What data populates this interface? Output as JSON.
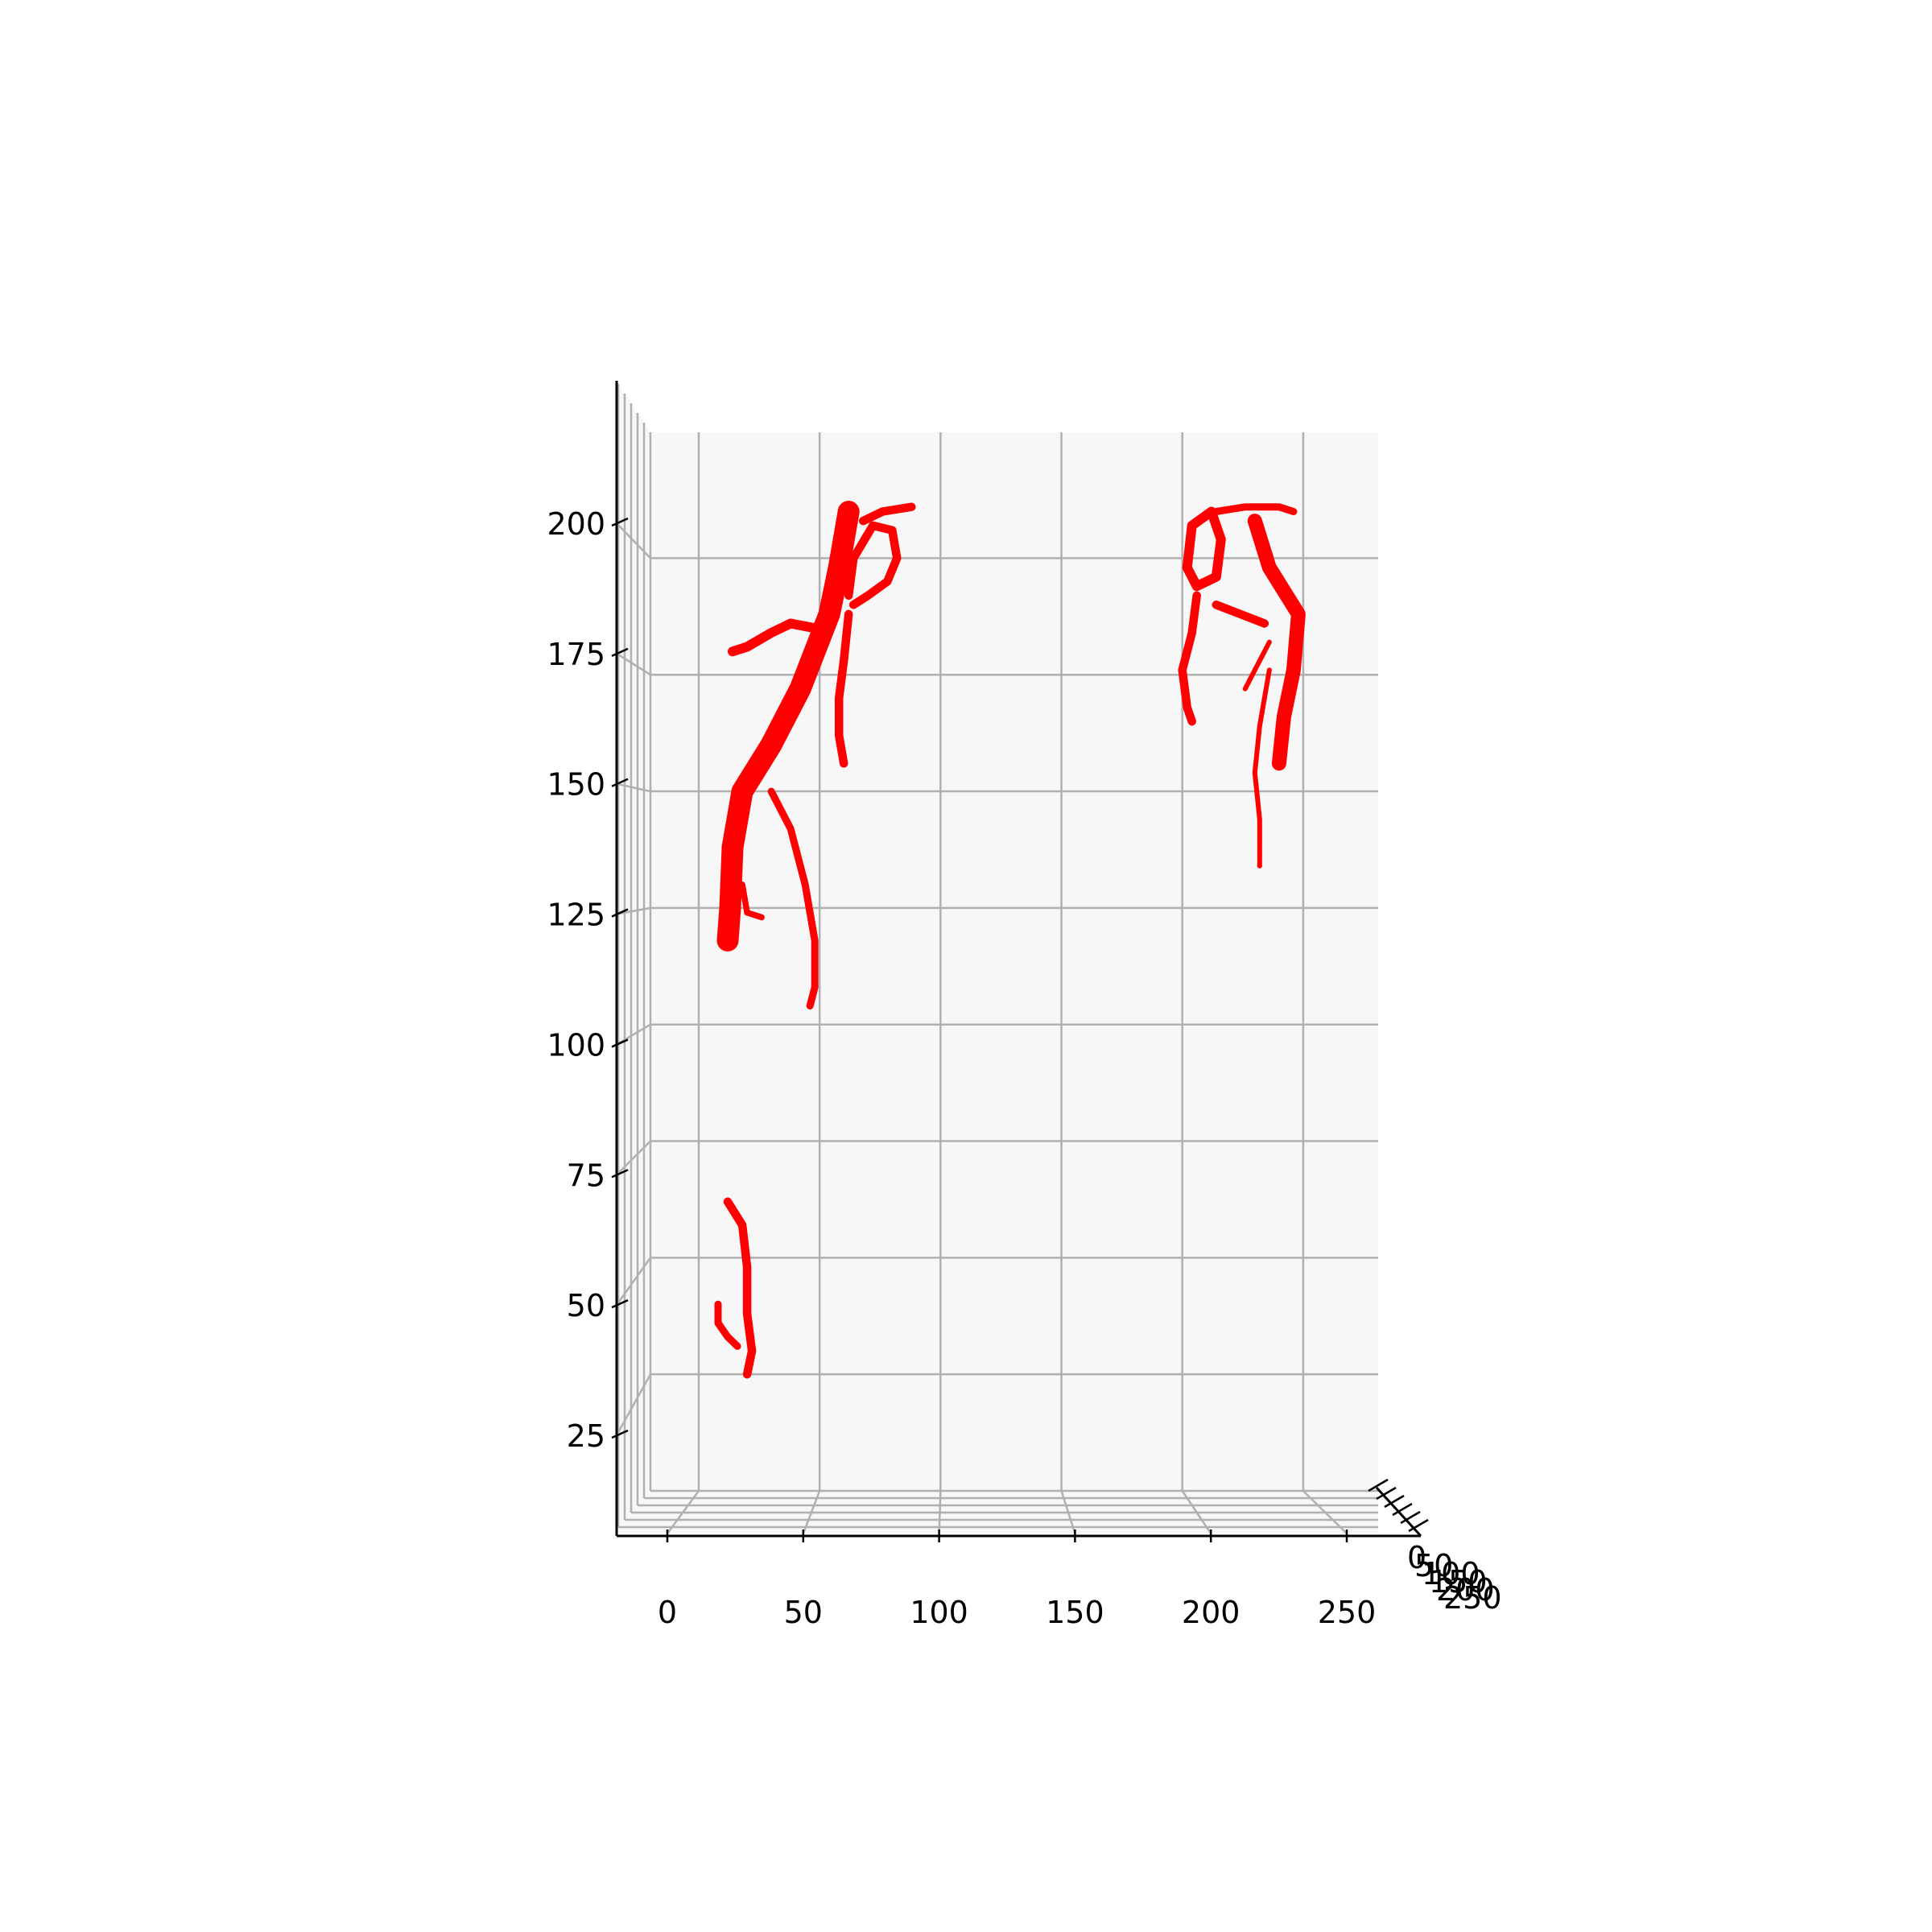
{
  "chart_data": {
    "type": "scatter",
    "projection": "3d",
    "view": "front (x horizontal, z vertical, y axis seen edge-on)",
    "marker_color": "#ff0000",
    "pane_color": "#f7f7f7",
    "grid": true,
    "x_ticks": [
      "0",
      "50",
      "100",
      "150",
      "200",
      "250"
    ],
    "y_ticks": [
      "0",
      "50",
      "100",
      "150",
      "200",
      "250"
    ],
    "z_ticks": [
      "25",
      "50",
      "75",
      "100",
      "125",
      "150",
      "175",
      "200"
    ],
    "xlim": [
      -15,
      262
    ],
    "zlim": [
      3,
      221
    ],
    "series": [
      {
        "structures": [
          {
            "kind": "trunk",
            "points": [
              [
                62,
                210
              ],
              [
                58,
                198
              ],
              [
                54,
                188
              ],
              [
                42,
                172
              ],
              [
                30,
                160
              ],
              [
                18,
                150
              ],
              [
                14,
                138
              ],
              [
                13,
                125
              ],
              [
                12,
                118
              ]
            ],
            "width": 9
          },
          {
            "kind": "branch",
            "points": [
              [
                48,
                185
              ],
              [
                38,
                186
              ],
              [
                30,
                184
              ],
              [
                20,
                181
              ],
              [
                14,
                180
              ]
            ],
            "width": 4
          },
          {
            "kind": "branch",
            "points": [
              [
                62,
                188
              ],
              [
                60,
                178
              ],
              [
                58,
                170
              ],
              [
                58,
                162
              ],
              [
                60,
                156
              ]
            ],
            "width": 3.5
          },
          {
            "kind": "branch",
            "points": [
              [
                64,
                190
              ],
              [
                70,
                192
              ],
              [
                78,
                195
              ],
              [
                82,
                200
              ],
              [
                80,
                206
              ],
              [
                72,
                207
              ],
              [
                64,
                200
              ],
              [
                62,
                192
              ]
            ],
            "width": 3.5
          },
          {
            "kind": "branch",
            "points": [
              [
                68,
                208
              ],
              [
                76,
                210
              ],
              [
                88,
                211
              ]
            ],
            "width": 3.5
          },
          {
            "kind": "branch",
            "points": [
              [
                30,
                150
              ],
              [
                38,
                142
              ],
              [
                44,
                130
              ],
              [
                48,
                118
              ],
              [
                48,
                108
              ],
              [
                46,
                104
              ]
            ],
            "width": 3
          },
          {
            "kind": "branch",
            "points": [
              [
                18,
                130
              ],
              [
                20,
                124
              ],
              [
                26,
                123
              ]
            ],
            "width": 2.5
          }
        ]
      },
      {
        "structures": [
          {
            "kind": "trunk",
            "points": [
              [
                12,
                62
              ],
              [
                18,
                57
              ],
              [
                20,
                48
              ],
              [
                20,
                38
              ],
              [
                22,
                30
              ],
              [
                20,
                25
              ]
            ],
            "width": 3.5
          },
          {
            "kind": "branch",
            "points": [
              [
                8,
                40
              ],
              [
                8,
                36
              ],
              [
                12,
                33
              ],
              [
                16,
                31
              ]
            ],
            "width": 3
          }
        ]
      },
      {
        "structures": [
          {
            "kind": "loop",
            "points": [
              [
                212,
                210
              ],
              [
                204,
                207
              ],
              [
                202,
                198
              ],
              [
                206,
                194
              ],
              [
                214,
                196
              ],
              [
                216,
                204
              ],
              [
                212,
                210
              ]
            ],
            "width": 4
          },
          {
            "kind": "trunk",
            "points": [
              [
                230,
                208
              ],
              [
                236,
                198
              ],
              [
                248,
                188
              ],
              [
                246,
                176
              ],
              [
                242,
                166
              ],
              [
                240,
                156
              ]
            ],
            "width": 6
          },
          {
            "kind": "branch",
            "points": [
              [
                206,
                192
              ],
              [
                204,
                184
              ],
              [
                200,
                176
              ],
              [
                202,
                168
              ],
              [
                204,
                165
              ]
            ],
            "width": 3.5
          },
          {
            "kind": "branch",
            "points": [
              [
                214,
                190
              ],
              [
                224,
                188
              ],
              [
                234,
                186
              ]
            ],
            "width": 3.5
          },
          {
            "kind": "branch",
            "points": [
              [
                236,
                176
              ],
              [
                232,
                164
              ],
              [
                230,
                154
              ],
              [
                232,
                144
              ],
              [
                232,
                134
              ]
            ],
            "width": 2
          },
          {
            "kind": "branch",
            "points": [
              [
                236,
                182
              ],
              [
                230,
                176
              ],
              [
                226,
                172
              ]
            ],
            "width": 2
          },
          {
            "kind": "branch",
            "points": [
              [
                214,
                210
              ],
              [
                226,
                211
              ],
              [
                240,
                211
              ],
              [
                246,
                210
              ]
            ],
            "width": 3
          }
        ]
      }
    ]
  }
}
